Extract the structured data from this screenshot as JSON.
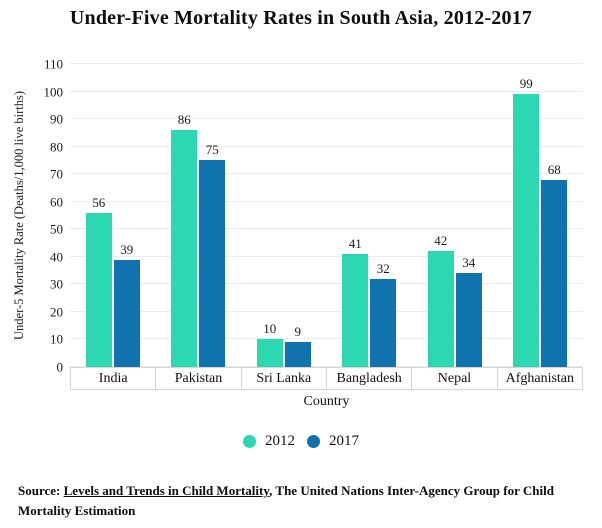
{
  "chart_data": {
    "type": "bar",
    "title": "Under-Five Mortality Rates in South Asia, 2012-2017",
    "categories": [
      "India",
      "Pakistan",
      "Sri Lanka",
      "Bangladesh",
      "Nepal",
      "Afghanistan"
    ],
    "series": [
      {
        "name": "2012",
        "color": "#2bd8b2",
        "values": [
          56,
          86,
          10,
          41,
          42,
          99
        ]
      },
      {
        "name": "2017",
        "color": "#1173ae",
        "values": [
          39,
          75,
          9,
          32,
          34,
          68
        ]
      }
    ],
    "xlabel": "Country",
    "ylabel": "Under-5 Mortality Rate (Deaths/1,000 live births)",
    "ylim": [
      0,
      110
    ],
    "yticks": [
      0,
      10,
      20,
      30,
      40,
      50,
      60,
      70,
      80,
      90,
      100,
      110
    ],
    "grid": true,
    "legend_position": "bottom"
  },
  "source": {
    "prefix": "Source: ",
    "link_text": "Levels and Trends in Child Mortality",
    "suffix": ", The United Nations Inter-Agency Group for Child Mortality Estimation"
  },
  "colors": {
    "series_2012": "#2bd8b2",
    "series_2017": "#1173ae",
    "gridline": "#ededed",
    "axis_line": "#d6d6d6",
    "text": "#111111"
  }
}
